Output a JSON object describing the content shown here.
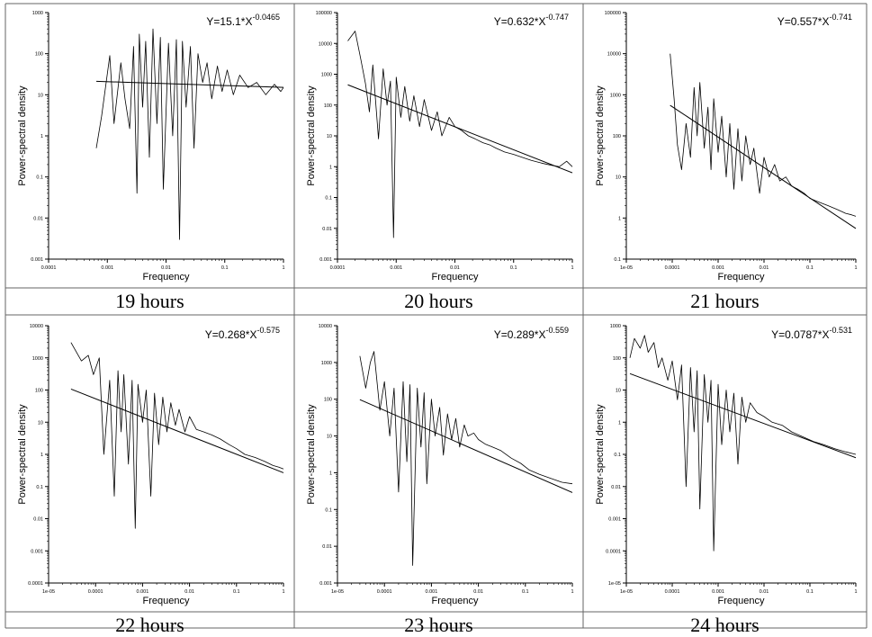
{
  "chart_data": [
    {
      "type": "line",
      "caption": "19 hours",
      "title": "",
      "equation": {
        "base": "Y=15.1*X",
        "exponent": "-0.0465"
      },
      "a": 15.1,
      "b": -0.0465,
      "xlabel": "Frequency",
      "ylabel": "Power-spectral density",
      "xscale": "log",
      "yscale": "log",
      "xlim": [
        0.0001,
        1
      ],
      "ylim": [
        0.001,
        1000
      ],
      "xticks": [
        "0.0001",
        "0.001",
        "0.01",
        "0.1",
        "1"
      ],
      "yticks": [
        "0.001",
        "0.01",
        "0.1",
        "1",
        "10",
        "100",
        "1000"
      ],
      "x": [
        0.00065,
        0.0008,
        0.0011,
        0.0013,
        0.0017,
        0.002,
        0.0024,
        0.0028,
        0.0032,
        0.0035,
        0.004,
        0.0045,
        0.0052,
        0.006,
        0.007,
        0.008,
        0.009,
        0.011,
        0.013,
        0.015,
        0.017,
        0.019,
        0.022,
        0.026,
        0.03,
        0.035,
        0.042,
        0.05,
        0.06,
        0.075,
        0.09,
        0.11,
        0.14,
        0.18,
        0.25,
        0.35,
        0.5,
        0.7,
        0.9,
        1.0
      ],
      "y": [
        0.5,
        3,
        90,
        2,
        60,
        8,
        1.5,
        150,
        0.04,
        300,
        5,
        200,
        0.3,
        400,
        2,
        250,
        0.05,
        180,
        1,
        220,
        0.003,
        200,
        5,
        150,
        0.5,
        100,
        20,
        60,
        8,
        50,
        12,
        40,
        10,
        30,
        15,
        20,
        10,
        18,
        12,
        15
      ]
    },
    {
      "type": "line",
      "caption": "20 hours",
      "title": "",
      "equation": {
        "base": "Y=0.632*X",
        "exponent": "-0.747"
      },
      "a": 0.632,
      "b": -0.747,
      "xlabel": "Frequency",
      "ylabel": "Power-spectral density",
      "xscale": "log",
      "yscale": "log",
      "xlim": [
        0.0001,
        1
      ],
      "ylim": [
        0.001,
        100000
      ],
      "xticks": [
        "0.0001",
        "0.001",
        "0.01",
        "0.1",
        "1"
      ],
      "yticks": [
        "0.001",
        "0.01",
        "0.1",
        "1",
        "10",
        "100",
        "1000",
        "10000",
        "100000"
      ],
      "x": [
        0.00015,
        0.0002,
        0.00025,
        0.0003,
        0.00035,
        0.0004,
        0.0005,
        0.0006,
        0.0007,
        0.0008,
        0.0009,
        0.001,
        0.0012,
        0.0014,
        0.0017,
        0.002,
        0.0025,
        0.003,
        0.004,
        0.005,
        0.006,
        0.008,
        0.01,
        0.013,
        0.017,
        0.022,
        0.03,
        0.04,
        0.05,
        0.07,
        0.1,
        0.14,
        0.2,
        0.3,
        0.45,
        0.6,
        0.8,
        1.0
      ],
      "y": [
        12000,
        25000,
        3000,
        500,
        60,
        2000,
        8,
        1500,
        100,
        600,
        0.005,
        800,
        40,
        400,
        30,
        200,
        20,
        150,
        15,
        60,
        10,
        40,
        20,
        15,
        10,
        8,
        6,
        5,
        4,
        3,
        2.5,
        2,
        1.6,
        1.3,
        1.1,
        1.0,
        1.5,
        1.0
      ]
    },
    {
      "type": "line",
      "caption": "21 hours",
      "title": "",
      "equation": {
        "base": "Y=0.557*X",
        "exponent": "-0.741"
      },
      "a": 0.557,
      "b": -0.741,
      "xlabel": "Frequency",
      "ylabel": "Power-spectral density",
      "xscale": "log",
      "yscale": "log",
      "xlim": [
        1e-05,
        1
      ],
      "ylim": [
        0.1,
        100000
      ],
      "xticks": [
        "1e-05",
        "0.0001",
        "0.001",
        "0.01",
        "0.1",
        "1"
      ],
      "yticks": [
        "0.1",
        "1",
        "10",
        "100",
        "1000",
        "10000",
        "100000"
      ],
      "x": [
        9e-05,
        0.00011,
        0.00013,
        0.00016,
        0.0002,
        0.00025,
        0.0003,
        0.00035,
        0.0004,
        0.0005,
        0.0006,
        0.0007,
        0.0008,
        0.001,
        0.0012,
        0.0015,
        0.0018,
        0.0022,
        0.0027,
        0.0033,
        0.004,
        0.005,
        0.006,
        0.008,
        0.01,
        0.013,
        0.017,
        0.022,
        0.03,
        0.04,
        0.055,
        0.075,
        0.1,
        0.15,
        0.25,
        0.4,
        0.6,
        0.8,
        1.0
      ],
      "y": [
        10000,
        800,
        60,
        15,
        200,
        30,
        1500,
        100,
        2000,
        50,
        500,
        15,
        800,
        40,
        300,
        10,
        200,
        5,
        150,
        8,
        100,
        20,
        50,
        4,
        30,
        10,
        20,
        8,
        10,
        6,
        5,
        4,
        3,
        2.5,
        2,
        1.6,
        1.3,
        1.2,
        1.1
      ]
    },
    {
      "type": "line",
      "caption": "22 hours",
      "title": "",
      "equation": {
        "base": "Y=0.268*X",
        "exponent": "-0.575"
      },
      "a": 0.268,
      "b": -0.575,
      "xlabel": "Frequency",
      "ylabel": "Power-spectral density",
      "xscale": "log",
      "yscale": "log",
      "xlim": [
        1e-05,
        1
      ],
      "ylim": [
        0.0001,
        10000
      ],
      "xticks": [
        "1e-05",
        "0.0001",
        "0.001",
        "0.01",
        "0.1",
        "1"
      ],
      "yticks": [
        "0.0001",
        "0.001",
        "0.01",
        "0.1",
        "1",
        "10",
        "100",
        "1000",
        "10000"
      ],
      "x": [
        3e-05,
        5e-05,
        7e-05,
        9e-05,
        0.00012,
        0.00015,
        0.0002,
        0.00025,
        0.0003,
        0.00035,
        0.0004,
        0.0005,
        0.0006,
        0.0007,
        0.0008,
        0.001,
        0.0012,
        0.0015,
        0.0018,
        0.0022,
        0.0027,
        0.0033,
        0.004,
        0.005,
        0.006,
        0.008,
        0.01,
        0.014,
        0.02,
        0.03,
        0.045,
        0.07,
        0.1,
        0.15,
        0.25,
        0.4,
        0.6,
        0.8,
        1.0
      ],
      "y": [
        3000,
        800,
        1200,
        300,
        1000,
        1,
        200,
        0.05,
        400,
        5,
        300,
        0.5,
        200,
        0.005,
        150,
        10,
        100,
        0.05,
        80,
        2,
        60,
        5,
        40,
        8,
        25,
        5,
        15,
        6,
        5,
        4,
        3,
        2,
        1.5,
        1,
        0.8,
        0.6,
        0.45,
        0.4,
        0.35
      ]
    },
    {
      "type": "line",
      "caption": "23 hours",
      "title": "",
      "equation": {
        "base": "Y=0.289*X",
        "exponent": "-0.559"
      },
      "a": 0.289,
      "b": -0.559,
      "xlabel": "Frequency",
      "ylabel": "Power-spectral density",
      "xscale": "log",
      "yscale": "log",
      "xlim": [
        1e-05,
        1
      ],
      "ylim": [
        0.001,
        10000
      ],
      "xticks": [
        "1e-05",
        "0.0001",
        "0.001",
        "0.01",
        "0.1",
        "1"
      ],
      "yticks": [
        "0.001",
        "0.01",
        "0.1",
        "1",
        "10",
        "100",
        "1000",
        "10000"
      ],
      "x": [
        3e-05,
        4e-05,
        5e-05,
        6e-05,
        8e-05,
        0.0001,
        0.00013,
        0.00016,
        0.0002,
        0.00025,
        0.0003,
        0.00035,
        0.0004,
        0.0005,
        0.0006,
        0.0007,
        0.0008,
        0.001,
        0.0012,
        0.0015,
        0.0018,
        0.0022,
        0.0027,
        0.0033,
        0.004,
        0.005,
        0.006,
        0.008,
        0.01,
        0.014,
        0.02,
        0.03,
        0.05,
        0.08,
        0.12,
        0.2,
        0.35,
        0.6,
        1.0
      ],
      "y": [
        1500,
        200,
        1000,
        2000,
        50,
        300,
        10,
        200,
        0.3,
        300,
        2,
        250,
        0.003,
        200,
        5,
        150,
        0.5,
        100,
        10,
        60,
        3,
        40,
        8,
        30,
        5,
        20,
        10,
        12,
        8,
        6,
        5,
        4,
        2.5,
        1.8,
        1.2,
        0.9,
        0.7,
        0.55,
        0.5
      ]
    },
    {
      "type": "line",
      "caption": "24 hours",
      "title": "",
      "equation": {
        "base": "Y=0.0787*X",
        "exponent": "-0.531"
      },
      "a": 0.0787,
      "b": -0.531,
      "xlabel": "Frequency",
      "ylabel": "Power-spectral density",
      "xscale": "log",
      "yscale": "log",
      "xlim": [
        1e-05,
        1
      ],
      "ylim": [
        1e-05,
        1000
      ],
      "xticks": [
        "1e-05",
        "0.0001",
        "0.001",
        "0.01",
        "0.1",
        "1"
      ],
      "yticks": [
        "1e-05",
        "0.0001",
        "0.001",
        "0.01",
        "0.1",
        "1",
        "10",
        "100",
        "1000"
      ],
      "x": [
        1.2e-05,
        1.5e-05,
        2e-05,
        2.5e-05,
        3e-05,
        4e-05,
        5e-05,
        6e-05,
        8e-05,
        0.0001,
        0.00013,
        0.00016,
        0.0002,
        0.00025,
        0.0003,
        0.00035,
        0.0004,
        0.0005,
        0.0006,
        0.0007,
        0.0008,
        0.001,
        0.0012,
        0.0015,
        0.0018,
        0.0022,
        0.0027,
        0.0033,
        0.004,
        0.005,
        0.007,
        0.01,
        0.015,
        0.025,
        0.04,
        0.07,
        0.12,
        0.2,
        0.35,
        0.6,
        1.0
      ],
      "y": [
        100,
        400,
        200,
        500,
        150,
        300,
        50,
        100,
        20,
        80,
        5,
        60,
        0.01,
        50,
        0.5,
        40,
        0.002,
        30,
        1,
        20,
        0.0001,
        15,
        0.2,
        10,
        0.5,
        8,
        0.05,
        6,
        1,
        4,
        2,
        1.5,
        1,
        0.8,
        0.5,
        0.35,
        0.25,
        0.2,
        0.15,
        0.12,
        0.1
      ]
    }
  ]
}
